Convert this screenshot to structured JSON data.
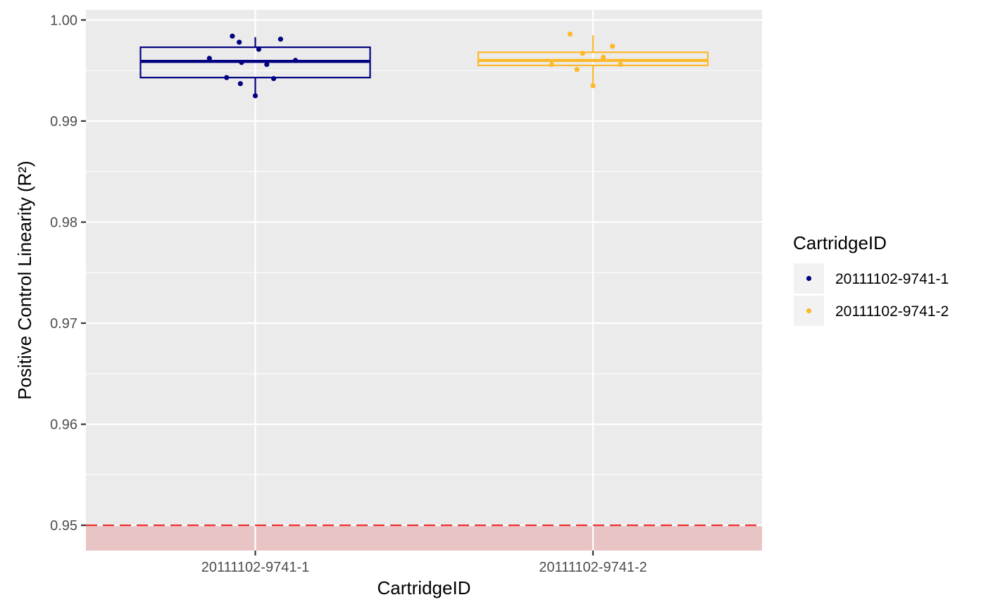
{
  "chart_data": {
    "type": "box",
    "xlabel": "CartridgeID",
    "ylabel": "Positive Control Linearity",
    "ylabel_math": "(R²)",
    "ylim": [
      0.9475,
      1.001
    ],
    "yticks": [
      0.95,
      0.96,
      0.97,
      0.98,
      0.99,
      1.0
    ],
    "ytick_labels": [
      "0.95",
      "0.96",
      "0.97",
      "0.98",
      "0.99",
      "1.00"
    ],
    "categories": [
      "20111102-9741-1",
      "20111102-9741-2"
    ],
    "threshold": {
      "value": 0.95,
      "color": "#ee2c2c",
      "style": "dashed",
      "band_below_color": "#e9c4c4"
    },
    "grid": true,
    "legend": {
      "title": "CartridgeID",
      "position": "right",
      "entries": [
        "20111102-9741-1",
        "20111102-9741-2"
      ]
    },
    "series": [
      {
        "name": "20111102-9741-1",
        "color": "#000080",
        "box": {
          "whisker_low": 0.9925,
          "q1": 0.9943,
          "median": 0.9959,
          "q3": 0.9973,
          "whisker_high": 0.9983
        },
        "points": [
          {
            "x": -0.4,
            "y": 0.9962
          },
          {
            "x": -0.25,
            "y": 0.9943
          },
          {
            "x": -0.2,
            "y": 0.9984
          },
          {
            "x": -0.14,
            "y": 0.9978
          },
          {
            "x": -0.13,
            "y": 0.9937
          },
          {
            "x": -0.12,
            "y": 0.9958
          },
          {
            "x": 0.0,
            "y": 0.9925
          },
          {
            "x": 0.03,
            "y": 0.9971
          },
          {
            "x": 0.1,
            "y": 0.9956
          },
          {
            "x": 0.16,
            "y": 0.9942
          },
          {
            "x": 0.22,
            "y": 0.9981
          },
          {
            "x": 0.35,
            "y": 0.996
          }
        ]
      },
      {
        "name": "20111102-9741-2",
        "color": "#fdb92a",
        "box": {
          "whisker_low": 0.9935,
          "q1": 0.9955,
          "median": 0.996,
          "q3": 0.9968,
          "whisker_high": 0.9985
        },
        "points": [
          {
            "x": -0.36,
            "y": 0.9956
          },
          {
            "x": -0.2,
            "y": 0.9986
          },
          {
            "x": -0.14,
            "y": 0.9951
          },
          {
            "x": -0.09,
            "y": 0.9967
          },
          {
            "x": 0.0,
            "y": 0.9935
          },
          {
            "x": 0.09,
            "y": 0.9963
          },
          {
            "x": 0.17,
            "y": 0.9974
          },
          {
            "x": 0.24,
            "y": 0.9956
          }
        ]
      }
    ]
  }
}
